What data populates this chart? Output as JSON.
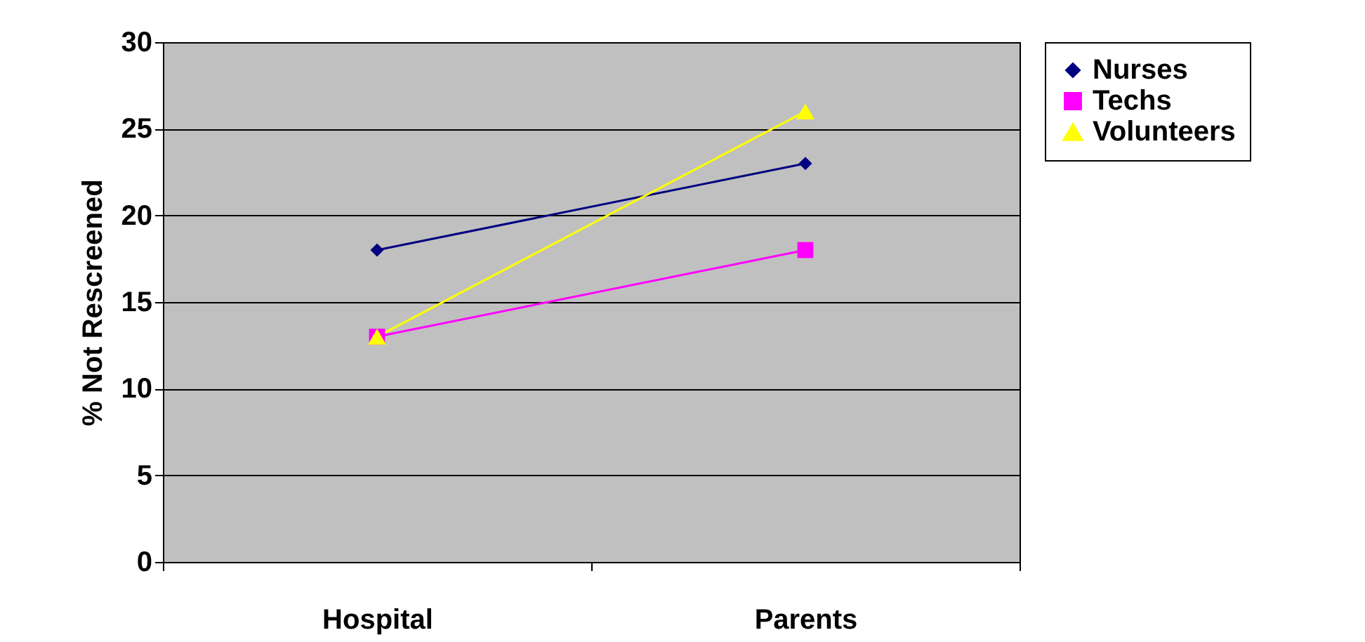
{
  "chart_data": {
    "type": "line",
    "ylabel": "% Not Rescreened",
    "categories": [
      "Hospital",
      "Parents"
    ],
    "series": [
      {
        "name": "Nurses",
        "color": "#000080",
        "values": [
          18,
          23
        ],
        "marker": "diamond"
      },
      {
        "name": "Techs",
        "color": "#ff00ff",
        "values": [
          13,
          18
        ],
        "marker": "square"
      },
      {
        "name": "Volunteers",
        "color": "#ffff00",
        "values": [
          13,
          26
        ],
        "marker": "triangle"
      }
    ],
    "ylim": [
      0,
      30
    ],
    "yticks": [
      0,
      5,
      10,
      15,
      20,
      25,
      30
    ],
    "grid": "y",
    "legend": "right"
  }
}
